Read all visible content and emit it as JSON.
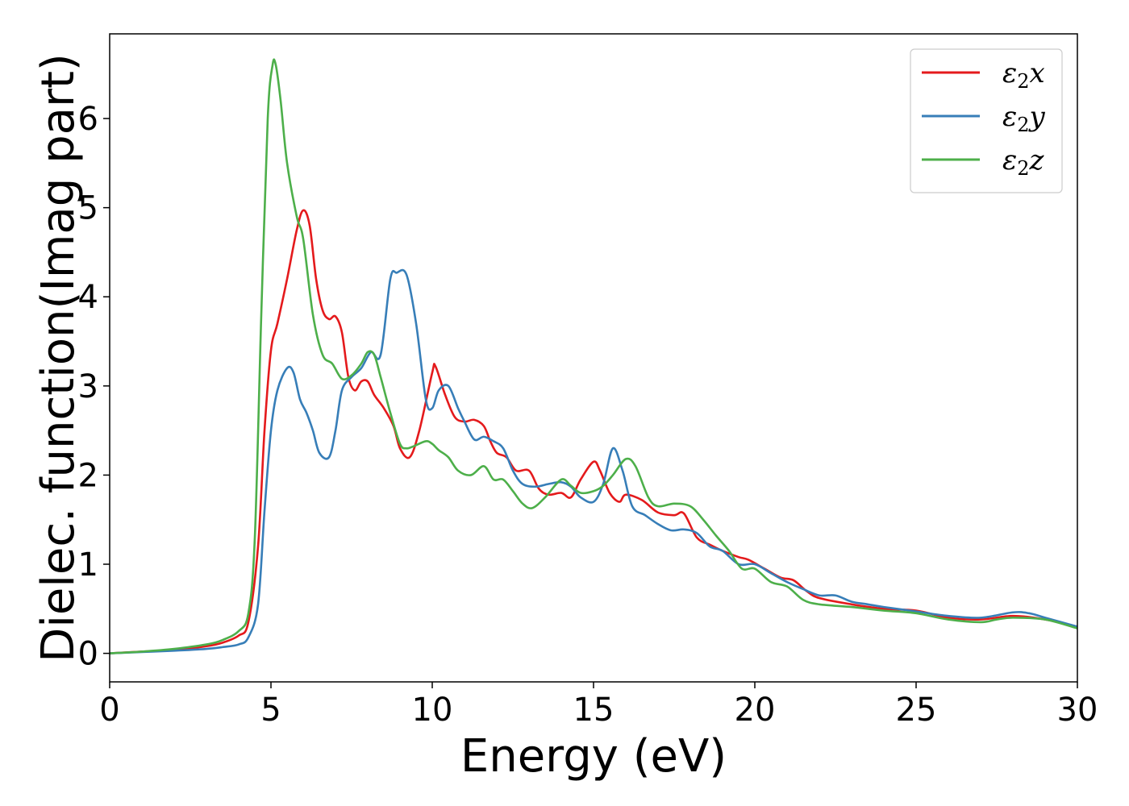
{
  "chart_data": {
    "type": "line",
    "xlabel": "Energy (eV)",
    "ylabel": "Dielec. function(Imag part)",
    "xlim": [
      0,
      30
    ],
    "ylim": [
      -0.32,
      6.95
    ],
    "xticks": [
      0,
      5,
      10,
      15,
      20,
      25,
      30
    ],
    "yticks": [
      0,
      1,
      2,
      3,
      4,
      5,
      6
    ],
    "grid": false,
    "legend": "top-right",
    "series": [
      {
        "name": "ε2x",
        "legend_main": "ε",
        "legend_sub": "2",
        "legend_suffix": "x",
        "color": "#e41a1c",
        "x": [
          0,
          1,
          2,
          3,
          3.5,
          4,
          4.3,
          4.6,
          4.8,
          5.0,
          5.2,
          5.5,
          5.8,
          6.0,
          6.2,
          6.4,
          6.6,
          6.8,
          7.0,
          7.2,
          7.4,
          7.6,
          7.8,
          8.0,
          8.2,
          8.5,
          8.8,
          9.0,
          9.3,
          9.6,
          10.0,
          10.1,
          10.4,
          10.7,
          11.0,
          11.3,
          11.6,
          11.8,
          12.0,
          12.3,
          12.6,
          13.0,
          13.3,
          13.6,
          14.0,
          14.3,
          14.6,
          15.0,
          15.2,
          15.5,
          15.8,
          16.0,
          16.5,
          17.0,
          17.5,
          17.8,
          18.2,
          18.6,
          19.0,
          19.5,
          19.8,
          20.3,
          20.8,
          21.2,
          21.6,
          22.0,
          23.0,
          24.0,
          25.0,
          26.0,
          27.0,
          28.0,
          29.0,
          30.0
        ],
        "y": [
          0,
          0.02,
          0.04,
          0.08,
          0.12,
          0.2,
          0.35,
          1.2,
          2.5,
          3.4,
          3.7,
          4.2,
          4.75,
          4.97,
          4.8,
          4.2,
          3.85,
          3.75,
          3.78,
          3.6,
          3.1,
          2.95,
          3.05,
          3.05,
          2.9,
          2.75,
          2.55,
          2.3,
          2.2,
          2.5,
          3.15,
          3.22,
          2.9,
          2.65,
          2.6,
          2.62,
          2.55,
          2.38,
          2.25,
          2.2,
          2.05,
          2.05,
          1.85,
          1.78,
          1.8,
          1.75,
          1.95,
          2.15,
          2.05,
          1.8,
          1.7,
          1.78,
          1.72,
          1.58,
          1.55,
          1.57,
          1.3,
          1.22,
          1.15,
          1.08,
          1.05,
          0.95,
          0.85,
          0.82,
          0.7,
          0.62,
          0.55,
          0.5,
          0.48,
          0.4,
          0.38,
          0.42,
          0.38,
          0.3
        ]
      },
      {
        "name": "ε2y",
        "legend_main": "ε",
        "legend_sub": "2",
        "legend_suffix": "y",
        "color": "#377eb8",
        "x": [
          0,
          1,
          2,
          3,
          3.5,
          4,
          4.3,
          4.6,
          4.8,
          5.0,
          5.2,
          5.5,
          5.7,
          5.9,
          6.1,
          6.3,
          6.5,
          6.8,
          7.0,
          7.2,
          7.5,
          7.8,
          8.1,
          8.4,
          8.7,
          8.9,
          9.2,
          9.5,
          9.8,
          10.0,
          10.2,
          10.5,
          10.8,
          11.0,
          11.3,
          11.6,
          11.9,
          12.2,
          12.5,
          12.8,
          13.2,
          13.6,
          14.0,
          14.3,
          14.6,
          15.0,
          15.3,
          15.6,
          15.9,
          16.2,
          16.6,
          17.0,
          17.4,
          17.8,
          18.2,
          18.6,
          19.0,
          19.5,
          20.0,
          20.5,
          21.0,
          21.5,
          22.0,
          22.5,
          23.0,
          23.5,
          24.0,
          25.0,
          26.0,
          27.0,
          28.0,
          28.5,
          29.0,
          30.0
        ],
        "y": [
          0,
          0.015,
          0.03,
          0.05,
          0.07,
          0.1,
          0.18,
          0.55,
          1.6,
          2.5,
          2.95,
          3.2,
          3.15,
          2.85,
          2.7,
          2.5,
          2.25,
          2.2,
          2.5,
          2.95,
          3.1,
          3.2,
          3.38,
          3.35,
          4.2,
          4.27,
          4.25,
          3.7,
          2.85,
          2.75,
          2.95,
          3.0,
          2.75,
          2.6,
          2.4,
          2.43,
          2.38,
          2.3,
          2.05,
          1.9,
          1.87,
          1.9,
          1.92,
          1.87,
          1.75,
          1.7,
          1.9,
          2.3,
          2.05,
          1.65,
          1.55,
          1.45,
          1.38,
          1.39,
          1.35,
          1.2,
          1.15,
          1.0,
          1.0,
          0.9,
          0.8,
          0.72,
          0.65,
          0.65,
          0.58,
          0.55,
          0.52,
          0.47,
          0.42,
          0.4,
          0.46,
          0.45,
          0.4,
          0.3
        ]
      },
      {
        "name": "ε2z",
        "legend_main": "ε",
        "legend_sub": "2",
        "legend_suffix": "z",
        "color": "#4daf4a",
        "x": [
          0,
          1,
          2,
          3,
          3.5,
          4,
          4.3,
          4.5,
          4.7,
          4.9,
          5.05,
          5.15,
          5.3,
          5.5,
          5.8,
          6.0,
          6.3,
          6.6,
          6.9,
          7.2,
          7.5,
          7.8,
          8.0,
          8.2,
          8.4,
          8.7,
          9.0,
          9.2,
          9.4,
          9.8,
          10.0,
          10.2,
          10.5,
          10.8,
          11.2,
          11.6,
          11.9,
          12.2,
          12.5,
          12.8,
          13.1,
          13.5,
          14.0,
          14.3,
          14.6,
          15.0,
          15.3,
          15.6,
          16.0,
          16.3,
          16.7,
          17.0,
          17.5,
          18.0,
          18.4,
          18.8,
          19.2,
          19.6,
          20.0,
          20.5,
          21.0,
          21.5,
          22.0,
          23.0,
          24.0,
          25.0,
          26.0,
          27.0,
          27.5,
          28.0,
          29.0,
          30.0
        ],
        "y": [
          0,
          0.02,
          0.05,
          0.1,
          0.15,
          0.25,
          0.45,
          1.3,
          3.8,
          6.0,
          6.6,
          6.6,
          6.2,
          5.5,
          4.9,
          4.65,
          3.8,
          3.35,
          3.25,
          3.08,
          3.12,
          3.25,
          3.38,
          3.35,
          3.1,
          2.7,
          2.35,
          2.3,
          2.32,
          2.38,
          2.35,
          2.28,
          2.2,
          2.05,
          2.0,
          2.1,
          1.95,
          1.95,
          1.82,
          1.68,
          1.63,
          1.75,
          1.95,
          1.88,
          1.8,
          1.82,
          1.88,
          2.0,
          2.18,
          2.1,
          1.75,
          1.65,
          1.68,
          1.65,
          1.5,
          1.32,
          1.15,
          0.95,
          0.95,
          0.8,
          0.75,
          0.6,
          0.55,
          0.52,
          0.48,
          0.45,
          0.38,
          0.35,
          0.38,
          0.4,
          0.38,
          0.28
        ]
      }
    ]
  }
}
